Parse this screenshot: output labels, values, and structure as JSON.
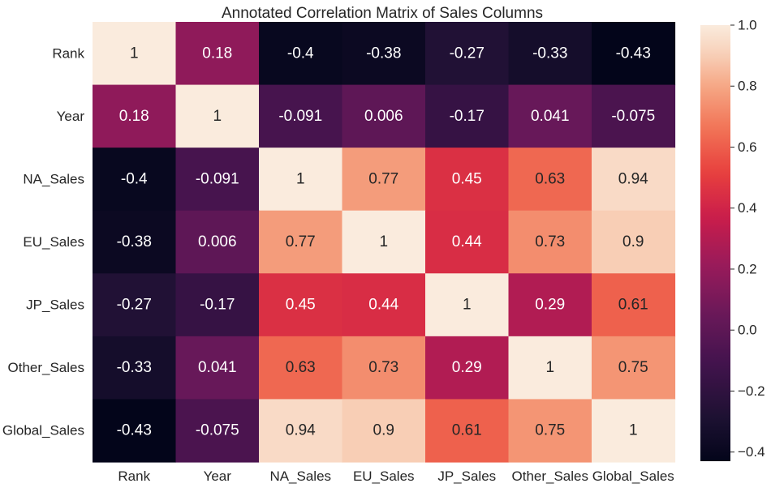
{
  "chart_data": {
    "type": "heatmap",
    "title": "Annotated Correlation Matrix of Sales Columns",
    "xlabel": "",
    "ylabel": "",
    "x_labels": [
      "Rank",
      "Year",
      "NA_Sales",
      "EU_Sales",
      "JP_Sales",
      "Other_Sales",
      "Global_Sales"
    ],
    "y_labels": [
      "Rank",
      "Year",
      "NA_Sales",
      "EU_Sales",
      "JP_Sales",
      "Other_Sales",
      "Global_Sales"
    ],
    "values": [
      [
        1,
        0.18,
        -0.4,
        -0.38,
        -0.27,
        -0.33,
        -0.43
      ],
      [
        0.18,
        1,
        -0.091,
        0.006,
        -0.17,
        0.041,
        -0.075
      ],
      [
        -0.4,
        -0.091,
        1,
        0.77,
        0.45,
        0.63,
        0.94
      ],
      [
        -0.38,
        0.006,
        0.77,
        1,
        0.44,
        0.73,
        0.9
      ],
      [
        -0.27,
        -0.17,
        0.45,
        0.44,
        1,
        0.29,
        0.61
      ],
      [
        -0.33,
        0.041,
        0.63,
        0.73,
        0.29,
        1,
        0.75
      ],
      [
        -0.43,
        -0.075,
        0.94,
        0.9,
        0.61,
        0.75,
        1
      ]
    ],
    "annotations": [
      [
        "1",
        "0.18",
        "-0.4",
        "-0.38",
        "-0.27",
        "-0.33",
        "-0.43"
      ],
      [
        "0.18",
        "1",
        "-0.091",
        "0.006",
        "-0.17",
        "0.041",
        "-0.075"
      ],
      [
        "-0.4",
        "-0.091",
        "1",
        "0.77",
        "0.45",
        "0.63",
        "0.94"
      ],
      [
        "-0.38",
        "0.006",
        "0.77",
        "1",
        "0.44",
        "0.73",
        "0.9"
      ],
      [
        "-0.27",
        "-0.17",
        "0.45",
        "0.44",
        "1",
        "0.29",
        "0.61"
      ],
      [
        "-0.33",
        "0.041",
        "0.63",
        "0.73",
        "0.29",
        "1",
        "0.75"
      ],
      [
        "-0.43",
        "-0.075",
        "0.94",
        "0.9",
        "0.61",
        "0.75",
        "1"
      ]
    ],
    "colormap": "rocket",
    "colorbar": {
      "vmin": -0.43,
      "vmax": 1.0,
      "ticks": [
        -0.4,
        -0.2,
        0.0,
        0.2,
        0.4,
        0.6,
        0.8,
        1.0
      ],
      "tick_labels": [
        "−0.4",
        "−0.2",
        "0.0",
        "0.2",
        "0.4",
        "0.6",
        "0.8",
        "1.0"
      ]
    },
    "grid": false,
    "legend": "colorbar-right"
  }
}
